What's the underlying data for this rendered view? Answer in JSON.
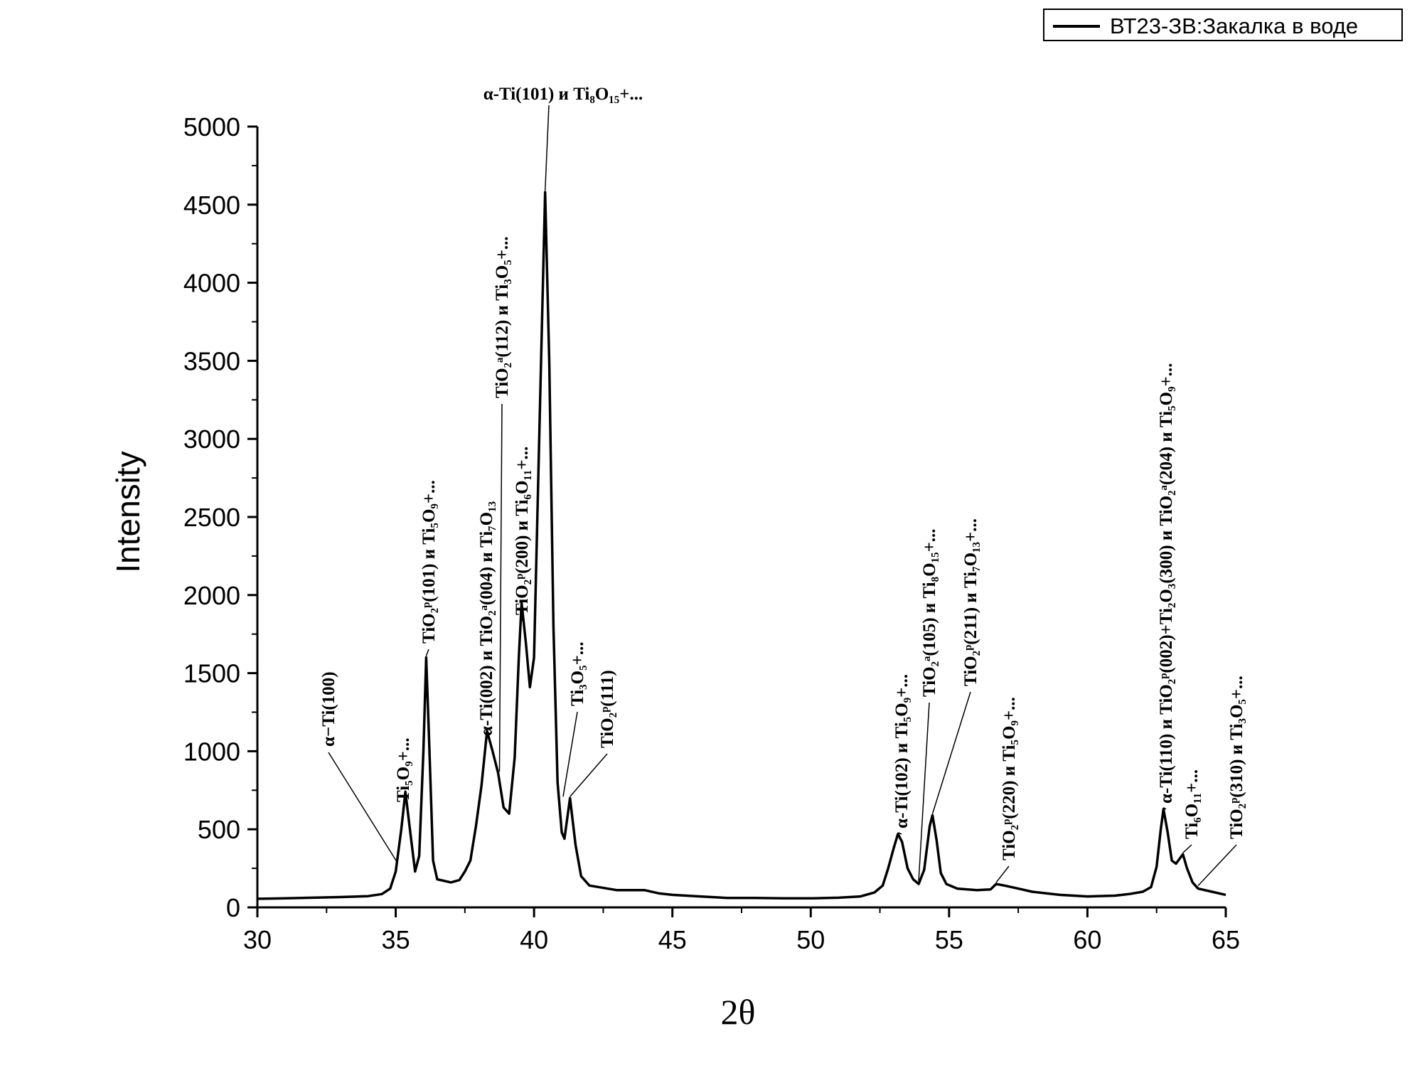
{
  "chart_data": {
    "type": "line",
    "xlabel": "2θ",
    "ylabel": "Intensity",
    "xlim": [
      30,
      65
    ],
    "ylim": [
      0,
      5000
    ],
    "x_ticks": [
      "30",
      "35",
      "40",
      "45",
      "50",
      "55",
      "60",
      "65"
    ],
    "y_ticks": [
      "0",
      "500",
      "1000",
      "1500",
      "2000",
      "2500",
      "3000",
      "3500",
      "4000",
      "4500",
      "5000"
    ],
    "grid": false,
    "legend_position": "top-right",
    "series": [
      {
        "name": "ВТ23-ЗВ:Закалка в воде",
        "color": "#000000",
        "points": [
          [
            30.0,
            55
          ],
          [
            31.0,
            58
          ],
          [
            32.0,
            62
          ],
          [
            33.0,
            66
          ],
          [
            34.0,
            72
          ],
          [
            34.5,
            85
          ],
          [
            34.8,
            120
          ],
          [
            35.0,
            230
          ],
          [
            35.2,
            500
          ],
          [
            35.35,
            740
          ],
          [
            35.5,
            520
          ],
          [
            35.7,
            230
          ],
          [
            35.85,
            330
          ],
          [
            36.0,
            1000
          ],
          [
            36.1,
            1600
          ],
          [
            36.2,
            1100
          ],
          [
            36.35,
            300
          ],
          [
            36.5,
            180
          ],
          [
            37.0,
            160
          ],
          [
            37.3,
            175
          ],
          [
            37.5,
            230
          ],
          [
            37.7,
            300
          ],
          [
            37.9,
            520
          ],
          [
            38.1,
            780
          ],
          [
            38.3,
            1130
          ],
          [
            38.5,
            1000
          ],
          [
            38.7,
            860
          ],
          [
            38.9,
            640
          ],
          [
            39.1,
            600
          ],
          [
            39.3,
            960
          ],
          [
            39.45,
            1600
          ],
          [
            39.55,
            1950
          ],
          [
            39.7,
            1700
          ],
          [
            39.85,
            1410
          ],
          [
            40.0,
            1600
          ],
          [
            40.2,
            3100
          ],
          [
            40.4,
            4580
          ],
          [
            40.55,
            3500
          ],
          [
            40.7,
            1800
          ],
          [
            40.85,
            800
          ],
          [
            41.0,
            480
          ],
          [
            41.1,
            440
          ],
          [
            41.3,
            700
          ],
          [
            41.5,
            400
          ],
          [
            41.7,
            200
          ],
          [
            42.0,
            140
          ],
          [
            43.0,
            110
          ],
          [
            44.0,
            110
          ],
          [
            44.5,
            90
          ],
          [
            45.0,
            80
          ],
          [
            46.0,
            70
          ],
          [
            47.0,
            60
          ],
          [
            48.0,
            60
          ],
          [
            49.0,
            58
          ],
          [
            50.0,
            58
          ],
          [
            51.0,
            62
          ],
          [
            51.8,
            70
          ],
          [
            52.3,
            95
          ],
          [
            52.6,
            140
          ],
          [
            52.8,
            250
          ],
          [
            53.0,
            380
          ],
          [
            53.15,
            470
          ],
          [
            53.3,
            420
          ],
          [
            53.5,
            250
          ],
          [
            53.7,
            180
          ],
          [
            53.9,
            150
          ],
          [
            54.1,
            240
          ],
          [
            54.3,
            520
          ],
          [
            54.4,
            590
          ],
          [
            54.55,
            430
          ],
          [
            54.7,
            220
          ],
          [
            54.9,
            150
          ],
          [
            55.3,
            120
          ],
          [
            56.0,
            110
          ],
          [
            56.5,
            115
          ],
          [
            56.7,
            150
          ],
          [
            57.0,
            140
          ],
          [
            57.5,
            120
          ],
          [
            58.0,
            100
          ],
          [
            59.0,
            80
          ],
          [
            60.0,
            70
          ],
          [
            61.0,
            75
          ],
          [
            61.5,
            85
          ],
          [
            62.0,
            100
          ],
          [
            62.3,
            130
          ],
          [
            62.5,
            260
          ],
          [
            62.65,
            500
          ],
          [
            62.75,
            630
          ],
          [
            62.9,
            480
          ],
          [
            63.05,
            300
          ],
          [
            63.2,
            280
          ],
          [
            63.45,
            340
          ],
          [
            63.6,
            250
          ],
          [
            63.8,
            160
          ],
          [
            64.0,
            120
          ],
          [
            64.5,
            100
          ],
          [
            65.0,
            80
          ]
        ]
      }
    ],
    "annotations": [
      {
        "text": "α−Ti(100)",
        "x": 35.05,
        "y": 280,
        "rotated": true
      },
      {
        "text": "Ti₅O₉+...",
        "x": 35.35,
        "y": 740,
        "rotated": true
      },
      {
        "text": "TiO₂ᵖ(101) и Ti₅O₉+...",
        "x": 36.1,
        "y": 1600,
        "rotated": true
      },
      {
        "text": "α-Ti(002) и TiO₂ᵃ(004) и Ti₇O₁₃",
        "x": 38.3,
        "y": 1130,
        "rotated": true
      },
      {
        "text": "TiO₂ᵃ(112) и Ti₃O₅+...",
        "x": 38.75,
        "y": 860,
        "rotated": true
      },
      {
        "text": "TiO₂ᵖ(200) и Ti₆O₁₁+...",
        "x": 39.55,
        "y": 1950,
        "rotated": true
      },
      {
        "text": "α-Ti(101) и Ti₈O₁₅+...",
        "x": 40.4,
        "y": 4580,
        "rotated": false
      },
      {
        "text": "Ti₃O₅+...",
        "x": 41.05,
        "y": 700,
        "rotated": true
      },
      {
        "text": "TiO₂ᵖ(111)",
        "x": 41.3,
        "y": 700,
        "rotated": true
      },
      {
        "text": "α-Ti(102) и Ti₅O₉+...",
        "x": 53.15,
        "y": 470,
        "rotated": true
      },
      {
        "text": "TiO₂ᵃ(105) и Ti₈O₁₅+...",
        "x": 53.9,
        "y": 160,
        "rotated": true
      },
      {
        "text": "TiO₂ᵖ(211) и Ti₇O₁₃+...",
        "x": 54.4,
        "y": 590,
        "rotated": true
      },
      {
        "text": "TiO₂ᵖ(220) и Ti₅O₉+...",
        "x": 56.7,
        "y": 150,
        "rotated": true
      },
      {
        "text": "α-Ti(110) и TiO₂ᵖ(002)+Ti₂O₃(300) и TiO₂ᵃ(204) и Ti₅O₉+...",
        "x": 62.75,
        "y": 630,
        "rotated": true
      },
      {
        "text": "Ti₆O₁₁+...",
        "x": 63.45,
        "y": 340,
        "rotated": true
      },
      {
        "text": "TiO₂ᵖ(310) и Ti₃O₅+...",
        "x": 64.0,
        "y": 130,
        "rotated": true
      }
    ]
  }
}
